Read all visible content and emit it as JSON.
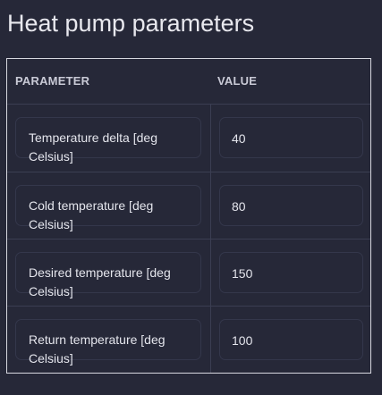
{
  "page": {
    "title": "Heat pump parameters"
  },
  "table": {
    "headers": {
      "parameter": "PARAMETER",
      "value": "VALUE"
    },
    "rows": [
      {
        "parameter": "Temperature delta [deg Celsius]",
        "value": "40"
      },
      {
        "parameter": "Cold temperature [deg Celsius]",
        "value": "80"
      },
      {
        "parameter": "Desired temperature [deg Celsius]",
        "value": "150"
      },
      {
        "parameter": "Return temperature [deg Celsius]",
        "value": "100"
      }
    ]
  },
  "colors": {
    "background": "#262838",
    "border": "#d7d8e0",
    "text": "#e4e5ec"
  }
}
